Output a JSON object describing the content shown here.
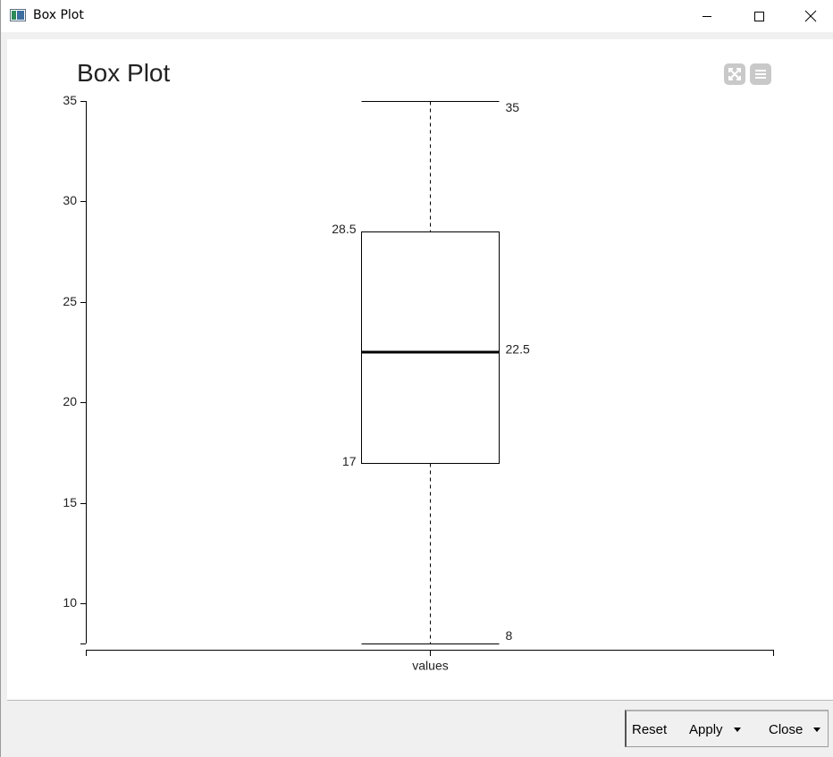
{
  "window": {
    "title": "Box Plot"
  },
  "toolbar": {
    "fullscreen_icon": "fullscreen-icon",
    "menu_icon": "hamburger-menu-icon"
  },
  "chart_data": {
    "type": "box",
    "title": "Box Plot",
    "categories": [
      "values"
    ],
    "boxes": [
      {
        "category": "values",
        "min": 8,
        "q1": 17,
        "median": 22.5,
        "q3": 28.5,
        "max": 35
      }
    ],
    "ylim": [
      8,
      35
    ],
    "yticks": [
      10,
      15,
      20,
      25,
      30,
      35
    ],
    "labels": {
      "max": "35",
      "q3": "28.5",
      "median": "22.5",
      "q1": "17",
      "min": "8"
    },
    "grid": false,
    "legend": "none"
  },
  "footer": {
    "reset_label": "Reset",
    "apply_label": "Apply",
    "close_label": "Close"
  }
}
